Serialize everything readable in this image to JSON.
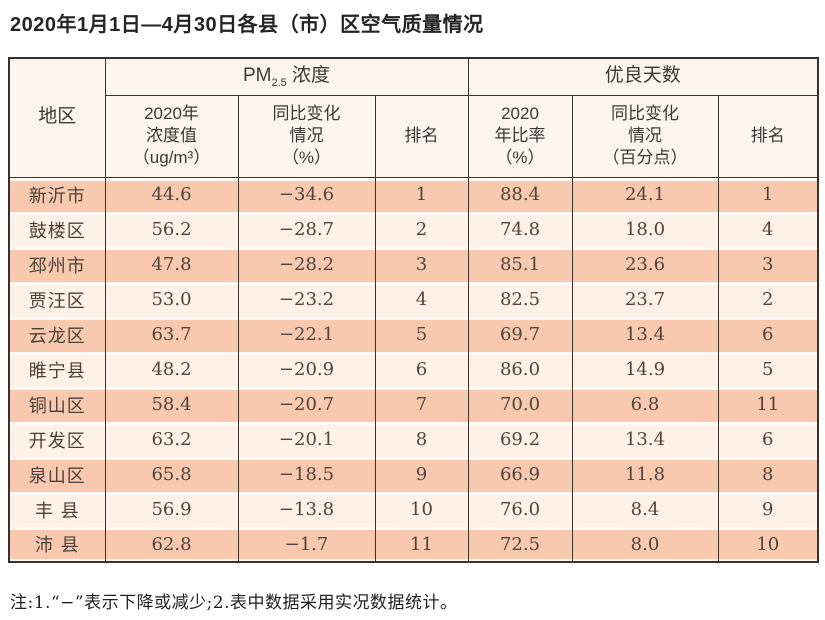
{
  "page": {
    "title": "2020年1月1日—4月30日各县（市）区空气质量情况",
    "footnote": "注:1.“−”表示下降或减少;2.表中数据采用实况数据统计。"
  },
  "table": {
    "header": {
      "region": "地区",
      "pm_main": "PM",
      "pm_sub": "2.5",
      "pm_rest": " 浓度",
      "good_days_group": "优良天数",
      "col_pm_value": "2020年\n浓度值\n（ug/m³）",
      "col_pm_change": "同比变化\n情况\n（%）",
      "col_pm_rank": "排名",
      "col_days_ratio": "2020\n年比率\n（%）",
      "col_days_change": "同比变化\n情况\n（百分点）",
      "col_days_rank": "排名"
    },
    "rows": [
      {
        "region": "新沂市",
        "pm_value": "44.6",
        "pm_change": "−34.6",
        "pm_rank": "1",
        "days_ratio": "88.4",
        "days_change": "24.1",
        "days_rank": "1"
      },
      {
        "region": "鼓楼区",
        "pm_value": "56.2",
        "pm_change": "−28.7",
        "pm_rank": "2",
        "days_ratio": "74.8",
        "days_change": "18.0",
        "days_rank": "4"
      },
      {
        "region": "邳州市",
        "pm_value": "47.8",
        "pm_change": "−28.2",
        "pm_rank": "3",
        "days_ratio": "85.1",
        "days_change": "23.6",
        "days_rank": "3"
      },
      {
        "region": "贾汪区",
        "pm_value": "53.0",
        "pm_change": "−23.2",
        "pm_rank": "4",
        "days_ratio": "82.5",
        "days_change": "23.7",
        "days_rank": "2"
      },
      {
        "region": "云龙区",
        "pm_value": "63.7",
        "pm_change": "−22.1",
        "pm_rank": "5",
        "days_ratio": "69.7",
        "days_change": "13.4",
        "days_rank": "6"
      },
      {
        "region": "睢宁县",
        "pm_value": "48.2",
        "pm_change": "−20.9",
        "pm_rank": "6",
        "days_ratio": "86.0",
        "days_change": "14.9",
        "days_rank": "5"
      },
      {
        "region": "铜山区",
        "pm_value": "58.4",
        "pm_change": "−20.7",
        "pm_rank": "7",
        "days_ratio": "70.0",
        "days_change": "6.8",
        "days_rank": "11"
      },
      {
        "region": "开发区",
        "pm_value": "63.2",
        "pm_change": "−20.1",
        "pm_rank": "8",
        "days_ratio": "69.2",
        "days_change": "13.4",
        "days_rank": "6"
      },
      {
        "region": "泉山区",
        "pm_value": "65.8",
        "pm_change": "−18.5",
        "pm_rank": "9",
        "days_ratio": "66.9",
        "days_change": "11.8",
        "days_rank": "8"
      },
      {
        "region": "丰 县",
        "pm_value": "56.9",
        "pm_change": "−13.8",
        "pm_rank": "10",
        "days_ratio": "76.0",
        "days_change": "8.4",
        "days_rank": "9"
      },
      {
        "region": "沛 县",
        "pm_value": "62.8",
        "pm_change": "−1.7",
        "pm_rank": "11",
        "days_ratio": "72.5",
        "days_change": "8.0",
        "days_rank": "10"
      }
    ]
  },
  "colors": {
    "peach": "#f8c9ae",
    "cream": "#fdf1e8",
    "header-bg": "#fcf5ee",
    "border-dark": "#38322d",
    "gap-white": "#fdf8f4",
    "text-dark": "#50443c"
  }
}
